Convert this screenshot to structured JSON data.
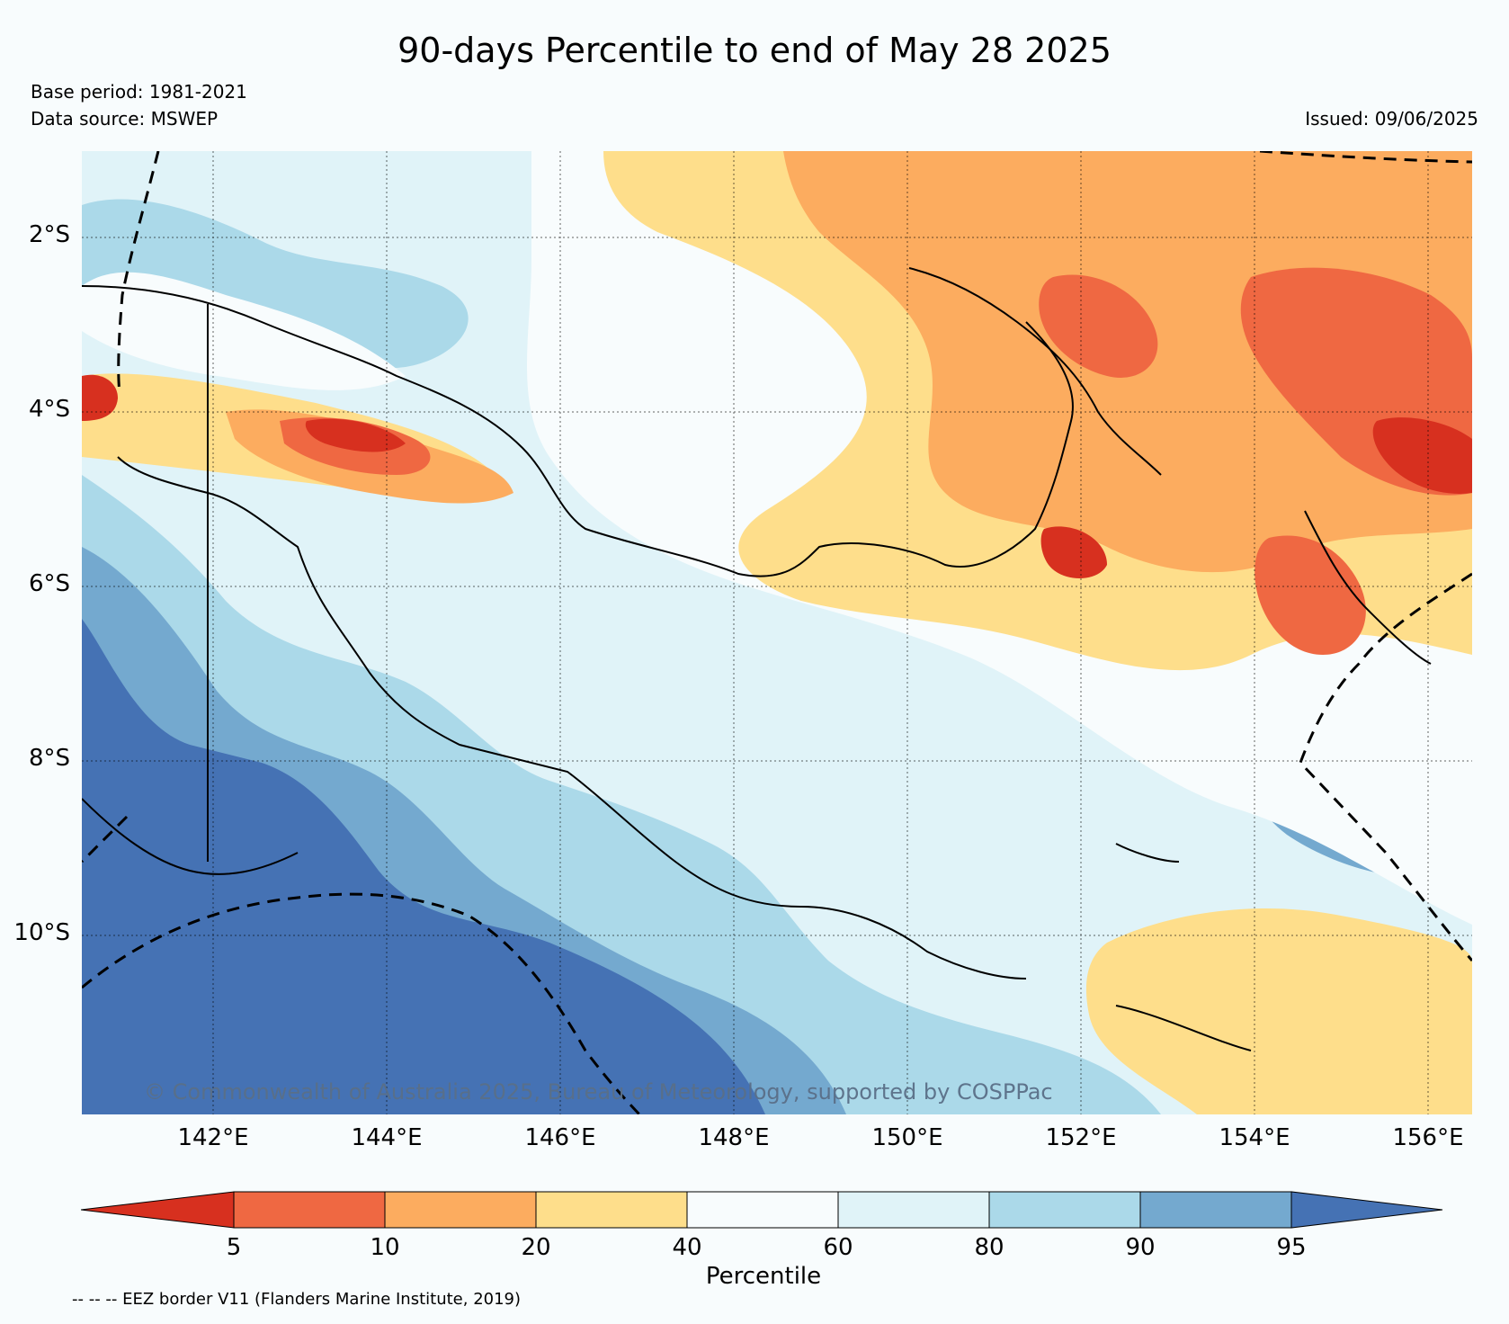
{
  "title": "90-days Percentile to end of May 28 2025",
  "base_period": "Base period: 1981-2021",
  "data_source": "Data source: MSWEP",
  "issued": "Issued: 09/06/2025",
  "copyright": "© Commonwealth of Australia 2025, Bureau of Meteorology, supported by COSPPac",
  "lat_labels": [
    "2°S",
    "4°S",
    "6°S",
    "8°S",
    "10°S"
  ],
  "lon_labels": [
    "142°E",
    "144°E",
    "146°E",
    "148°E",
    "150°E",
    "152°E",
    "154°E",
    "156°E"
  ],
  "colorbar": {
    "label": "Percentile",
    "ticks": [
      "5",
      "10",
      "20",
      "40",
      "60",
      "80",
      "90",
      "95"
    ],
    "colors": [
      "#d7301f",
      "#ef6842",
      "#fcac5f",
      "#fede8b",
      "#f8fcfd",
      "#e0f3f8",
      "#abd9e9",
      "#74a9cf",
      "#4572b4"
    ]
  },
  "eez_note": "-- -- -- EEZ border V11 (Flanders Marine Institute, 2019)"
}
